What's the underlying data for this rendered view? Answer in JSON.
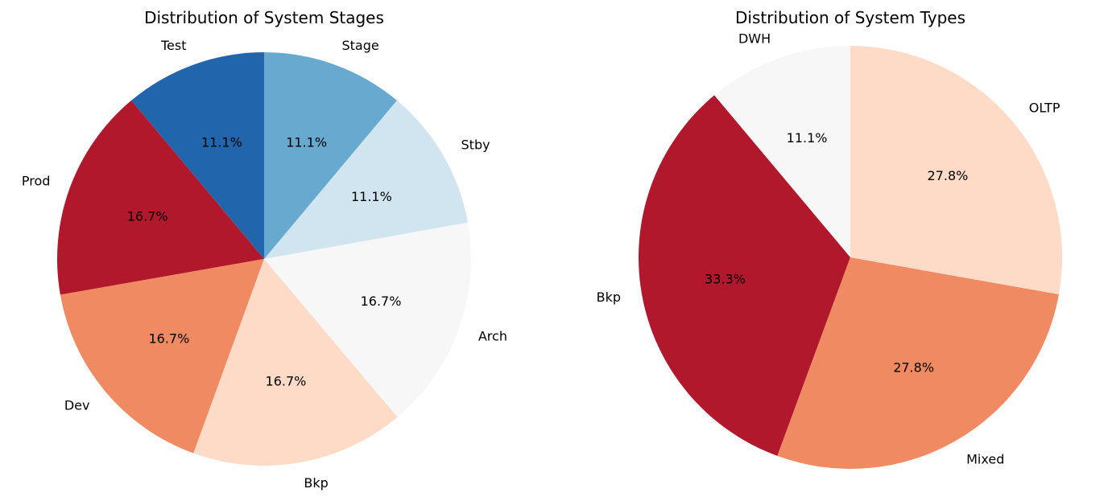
{
  "chart_data": [
    {
      "type": "pie",
      "title": "Distribution of System Stages",
      "start_angle_deg": 90,
      "direction": "counterclockwise",
      "slices": [
        {
          "label": "Test",
          "percent": "11.1%",
          "value": 11.1,
          "color": "#2166ac"
        },
        {
          "label": "Prod",
          "percent": "16.7%",
          "value": 16.7,
          "color": "#b2182b"
        },
        {
          "label": "Dev",
          "percent": "16.7%",
          "value": 16.7,
          "color": "#ef8a62"
        },
        {
          "label": "Bkp",
          "percent": "16.7%",
          "value": 16.7,
          "color": "#fddbc7"
        },
        {
          "label": "Arch",
          "percent": "16.7%",
          "value": 16.7,
          "color": "#f7f7f7"
        },
        {
          "label": "Stby",
          "percent": "11.1%",
          "value": 11.1,
          "color": "#d1e5f0"
        },
        {
          "label": "Stage",
          "percent": "11.1%",
          "value": 11.1,
          "color": "#67a9cf"
        }
      ]
    },
    {
      "type": "pie",
      "title": "Distribution of System Types",
      "start_angle_deg": 90,
      "direction": "counterclockwise",
      "slices": [
        {
          "label": "DWH",
          "percent": "11.1%",
          "value": 11.1,
          "color": "#f7f7f7"
        },
        {
          "label": "Bkp",
          "percent": "33.3%",
          "value": 33.3,
          "color": "#b2182b"
        },
        {
          "label": "Mixed",
          "percent": "27.8%",
          "value": 27.8,
          "color": "#ef8a62"
        },
        {
          "label": "OLTP",
          "percent": "27.8%",
          "value": 27.8,
          "color": "#fddbc7"
        }
      ]
    }
  ]
}
